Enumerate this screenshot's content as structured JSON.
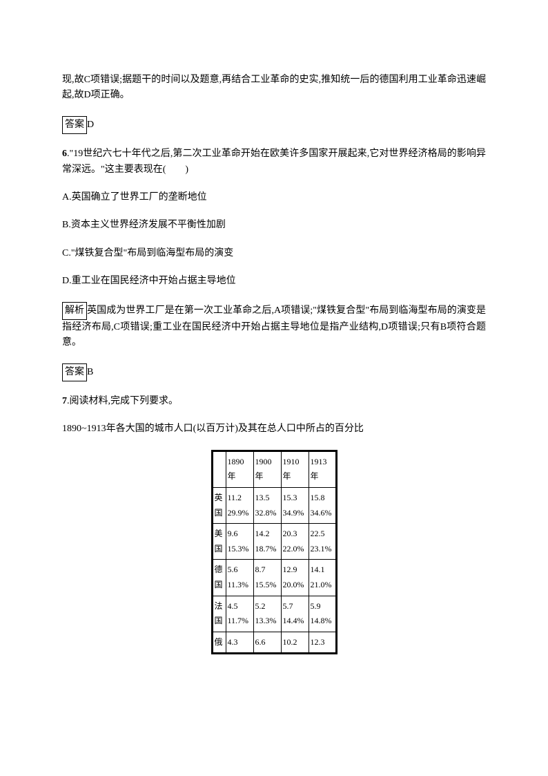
{
  "intro_para": "现,故C项错误;据题干的时间以及题意,再结合工业革命的史实,推知统一后的德国利用工业革命迅速崛起,故D项正确。",
  "answer5_label": "答案",
  "answer5_value": "D",
  "q6": {
    "num": "6",
    "stem": ".\"19世纪六七十年代之后,第二次工业革命开始在欧美许多国家开展起来,它对世界经济格局的影响异常深远。\"这主要表现在(　　)",
    "optA": "A.英国确立了世界工厂的垄断地位",
    "optB": "B.资本主义世界经济发展不平衡性加剧",
    "optC": "C.\"煤铁复合型\"布局到临海型布局的演变",
    "optD": "D.重工业在国民经济中开始占据主导地位",
    "analysis_label": "解析",
    "analysis_text": "英国成为世界工厂是在第一次工业革命之后,A项错误;\"煤铁复合型\"布局到临海型布局的演变是指经济布局,C项错误;重工业在国民经济中开始占据主导地位是指产业结构,D项错误;只有B项符合题意。",
    "answer_label": "答案",
    "answer_value": "B"
  },
  "q7": {
    "num": "7",
    "stem": ".阅读材料,完成下列要求。",
    "caption": "1890~1913年各大国的城市人口(以百万计)及其在总人口中所占的百分比"
  },
  "table": {
    "columns": [
      "1890年",
      "1900年",
      "1910年",
      "1913年"
    ],
    "rows": [
      {
        "country": "英国",
        "pop": [
          "11.2",
          "13.5",
          "15.3",
          "15.8"
        ],
        "pct": [
          "29.9%",
          "32.8%",
          "34.9%",
          "34.6%"
        ]
      },
      {
        "country": "美国",
        "pop": [
          "9.6",
          "14.2",
          "20.3",
          "22.5"
        ],
        "pct": [
          "15.3%",
          "18.7%",
          "22.0%",
          "23.1%"
        ]
      },
      {
        "country": "德国",
        "pop": [
          "5.6",
          "8.7",
          "12.9",
          "14.1"
        ],
        "pct": [
          "11.3%",
          "15.5%",
          "20.0%",
          "21.0%"
        ]
      },
      {
        "country": "法国",
        "pop": [
          "4.5",
          "5.2",
          "5.7",
          "5.9"
        ],
        "pct": [
          "11.7%",
          "13.3%",
          "14.4%",
          "14.8%"
        ]
      },
      {
        "country": "俄",
        "pop": [
          "4.3",
          "6.6",
          "10.2",
          "12.3"
        ],
        "pct": [
          "",
          "",
          "",
          ""
        ]
      }
    ]
  }
}
